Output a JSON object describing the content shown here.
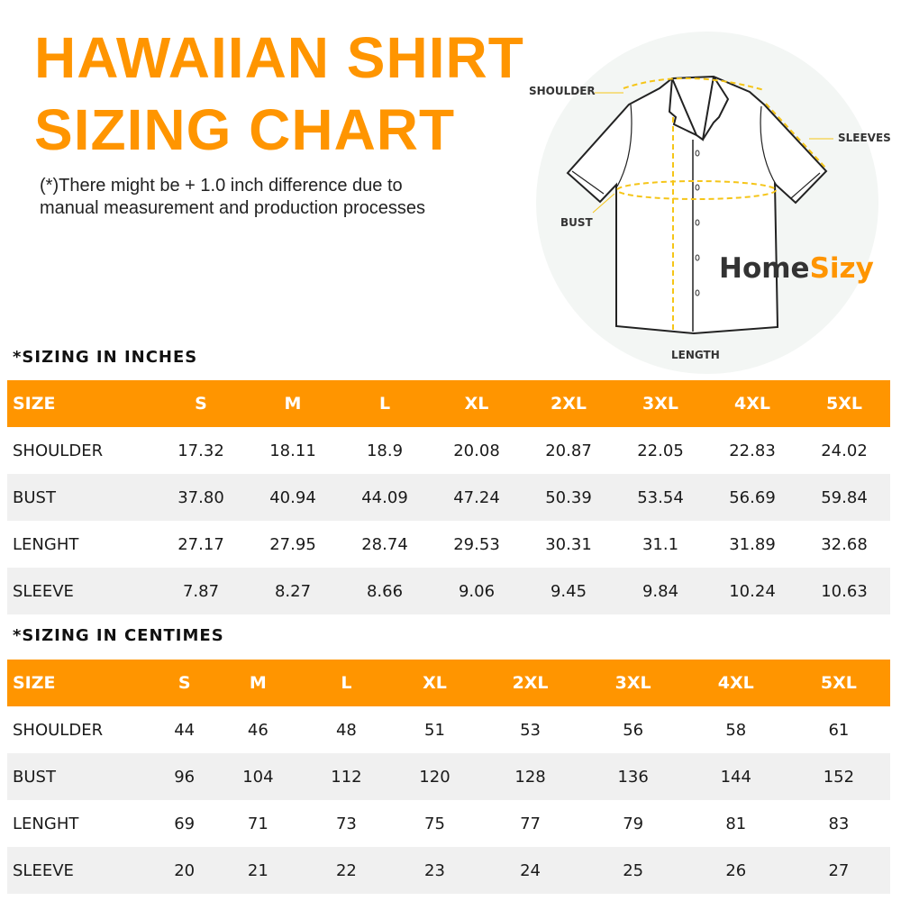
{
  "title": {
    "line1": "HAWAIIAN SHIRT",
    "line2": "SIZING CHART"
  },
  "note": {
    "line1": "(*)There might be + 1.0 inch difference due to",
    "line2": "manual measurement and production processes"
  },
  "diagram": {
    "shoulder": "SHOULDER",
    "sleeves": "SLEEVES",
    "bust": "BUST",
    "length": "LENGTH",
    "logo_home": "Home",
    "logo_sizy": "Sizy"
  },
  "colors": {
    "accent": "#ff9500",
    "measure_line": "#f5c518",
    "row_alt": "#f0f0f0"
  },
  "inches": {
    "heading": "*SIZING IN INCHES",
    "headers": [
      "SIZE",
      "S",
      "M",
      "L",
      "XL",
      "2XL",
      "3XL",
      "4XL",
      "5XL"
    ],
    "rows": [
      [
        "SHOULDER",
        "17.32",
        "18.11",
        "18.9",
        "20.08",
        "20.87",
        "22.05",
        "22.83",
        "24.02"
      ],
      [
        "BUST",
        "37.80",
        "40.94",
        "44.09",
        "47.24",
        "50.39",
        "53.54",
        "56.69",
        "59.84"
      ],
      [
        "LENGHT",
        "27.17",
        "27.95",
        "28.74",
        "29.53",
        "30.31",
        "31.1",
        "31.89",
        "32.68"
      ],
      [
        "SLEEVE",
        "7.87",
        "8.27",
        "8.66",
        "9.06",
        "9.45",
        "9.84",
        "10.24",
        "10.63"
      ]
    ]
  },
  "centimeters": {
    "heading": "*SIZING IN CENTIMES",
    "headers": [
      "SIZE",
      "S",
      "M",
      "L",
      "XL",
      "2XL",
      "3XL",
      "4XL",
      "5XL"
    ],
    "rows": [
      [
        "SHOULDER",
        "44",
        "46",
        "48",
        "51",
        "53",
        "56",
        "58",
        "61"
      ],
      [
        "BUST",
        "96",
        "104",
        "112",
        "120",
        "128",
        "136",
        "144",
        "152"
      ],
      [
        "LENGHT",
        "69",
        "71",
        "73",
        "75",
        "77",
        "79",
        "81",
        "83"
      ],
      [
        "SLEEVE",
        "20",
        "21",
        "22",
        "23",
        "24",
        "25",
        "26",
        "27"
      ]
    ]
  }
}
